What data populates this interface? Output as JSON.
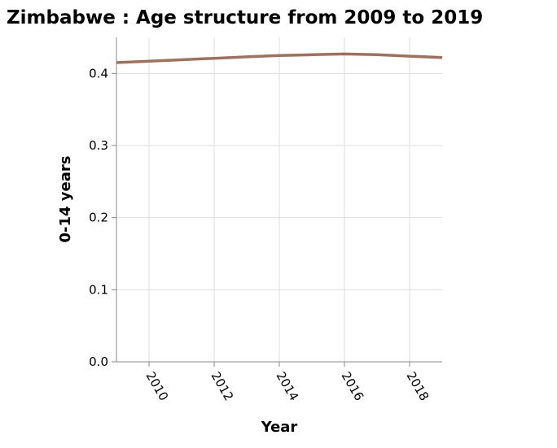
{
  "chart_data": {
    "type": "line",
    "title": "Zimbabwe : Age structure from 2009 to 2019",
    "xlabel": "Year",
    "ylabel": "0-14 years",
    "xlim": [
      2009,
      2019
    ],
    "ylim": [
      0,
      0.45
    ],
    "x_ticks": [
      2010,
      2012,
      2014,
      2016,
      2018
    ],
    "y_ticks": [
      "0.0",
      "0.1",
      "0.2",
      "0.3",
      "0.4"
    ],
    "grid": true,
    "series": [
      {
        "color": "#a0705a",
        "x": [
          2009,
          2010,
          2011,
          2012,
          2013,
          2014,
          2015,
          2016,
          2017,
          2018,
          2019
        ],
        "y": [
          0.415,
          0.417,
          0.419,
          0.421,
          0.423,
          0.425,
          0.426,
          0.427,
          0.426,
          0.424,
          0.422
        ]
      }
    ]
  }
}
